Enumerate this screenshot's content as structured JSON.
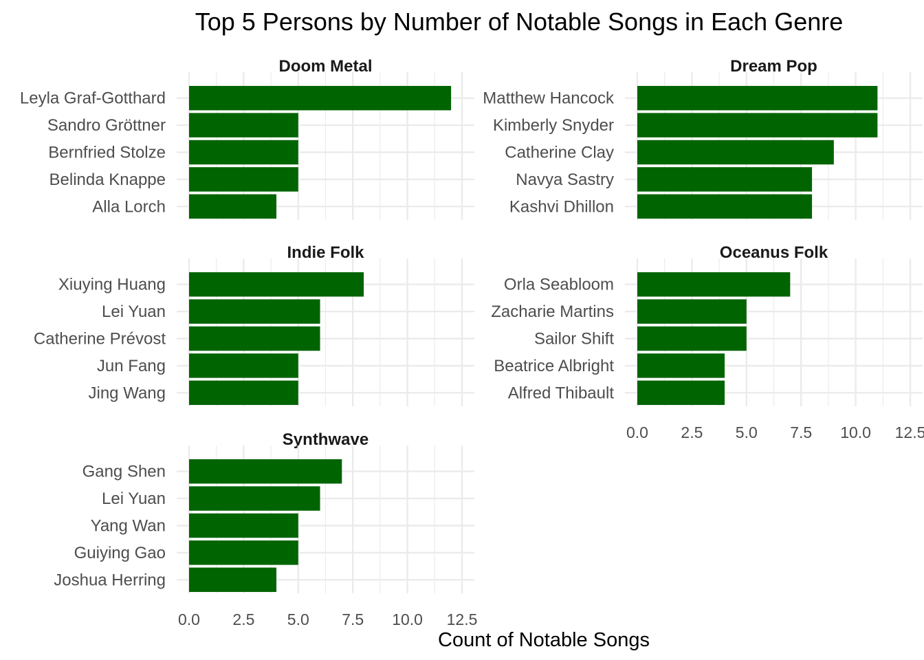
{
  "chart_data": {
    "type": "bar",
    "orientation": "horizontal",
    "title": "Top 5 Persons by Number of Notable Songs in Each Genre",
    "xlabel": "Count of Notable Songs",
    "ylabel": "",
    "xlim": [
      0,
      12.5
    ],
    "x_ticks": [
      "0.0",
      "2.5",
      "5.0",
      "7.5",
      "10.0",
      "12.5"
    ],
    "grid": true,
    "bar_color": "#006400",
    "facets": [
      {
        "name": "Doom Metal",
        "categories": [
          "Leyla Graf-Gotthard",
          "Sandro Gröttner",
          "Bernfried Stolze",
          "Belinda Knappe",
          "Alla Lorch"
        ],
        "values": [
          12,
          5,
          5,
          5,
          4
        ]
      },
      {
        "name": "Dream Pop",
        "categories": [
          "Matthew Hancock",
          "Kimberly Snyder",
          "Catherine Clay",
          "Navya Sastry",
          "Kashvi Dhillon"
        ],
        "values": [
          11,
          11,
          9,
          8,
          8
        ]
      },
      {
        "name": "Indie Folk",
        "categories": [
          "Xiuying Huang",
          "Lei Yuan",
          "Catherine Prévost",
          "Jun Fang",
          "Jing Wang"
        ],
        "values": [
          8,
          6,
          6,
          5,
          5
        ]
      },
      {
        "name": "Oceanus Folk",
        "categories": [
          "Orla Seabloom",
          "Zacharie Martins",
          "Sailor Shift",
          "Beatrice Albright",
          "Alfred Thibault"
        ],
        "values": [
          7,
          5,
          5,
          4,
          4
        ]
      },
      {
        "name": "Synthwave",
        "categories": [
          "Gang Shen",
          "Lei Yuan",
          "Yang Wan",
          "Guiying Gao",
          "Joshua Herring"
        ],
        "values": [
          7,
          6,
          5,
          5,
          4
        ]
      }
    ]
  }
}
